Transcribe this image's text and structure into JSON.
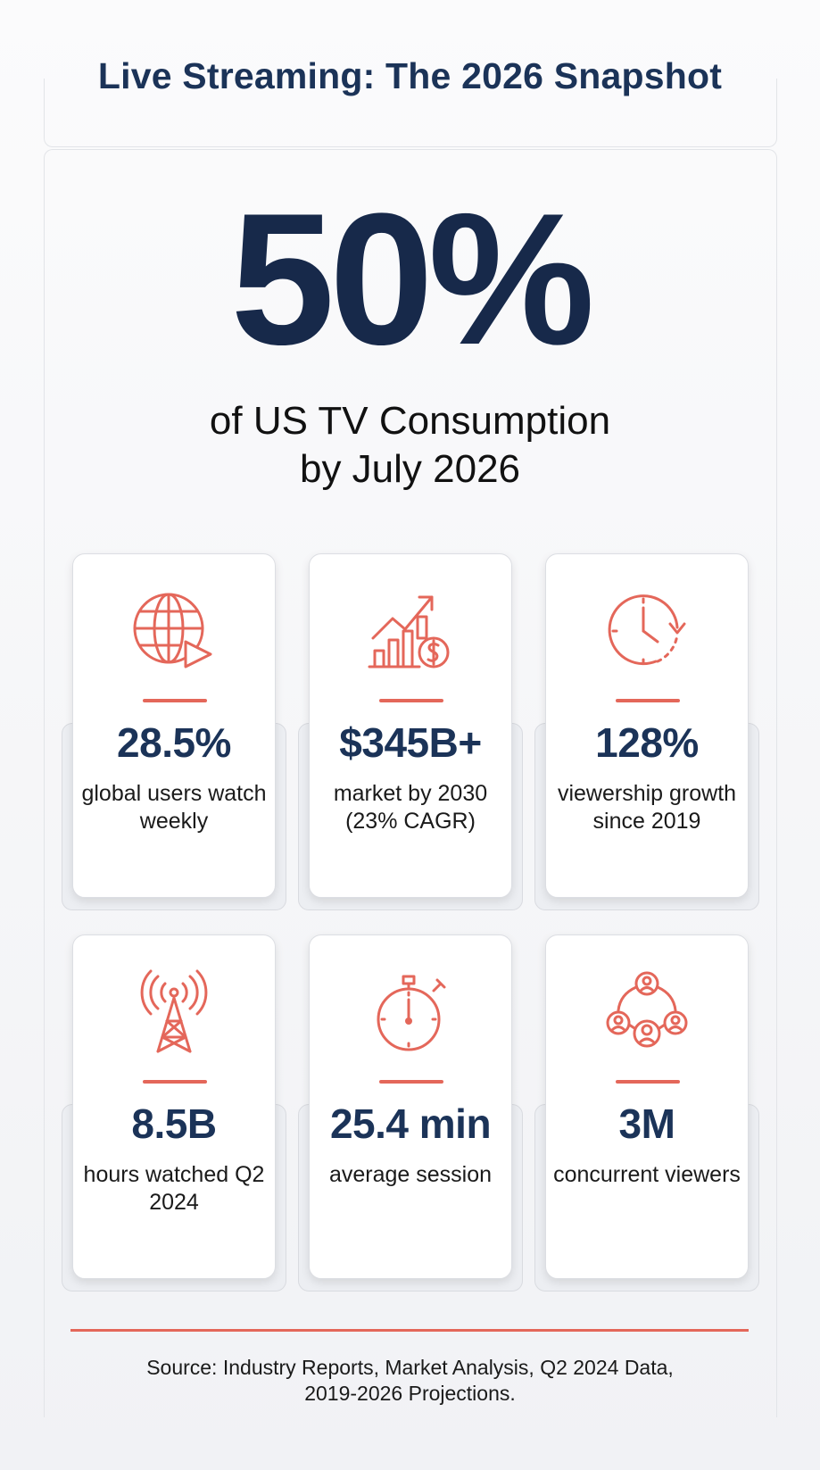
{
  "header": {
    "title": "Live Streaming: The 2026 Snapshot"
  },
  "hero": {
    "value": "50%",
    "subtitle_line1": "of US TV Consumption",
    "subtitle_line2": "by July 2026"
  },
  "stats": [
    {
      "icon": "globe-play-icon",
      "value": "28.5%",
      "label": "global users watch weekly"
    },
    {
      "icon": "growth-chart-dollar-icon",
      "value": "$345B+",
      "label": "market by 2030 (23% CAGR)"
    },
    {
      "icon": "clock-icon",
      "value": "128%",
      "label": "viewership growth since 2019"
    },
    {
      "icon": "broadcast-tower-icon",
      "value": "8.5B",
      "label": "hours watched Q2 2024"
    },
    {
      "icon": "stopwatch-icon",
      "value": "25.4 min",
      "label": "average session"
    },
    {
      "icon": "people-network-icon",
      "value": "3M",
      "label": "concurrent viewers"
    }
  ],
  "footer": {
    "source_line1": "Source: Industry Reports, Market Analysis, Q2 2024 Data,",
    "source_line2": "2019-2026 Projections."
  },
  "colors": {
    "navy": "#1b3358",
    "accent": "#e4675a"
  }
}
